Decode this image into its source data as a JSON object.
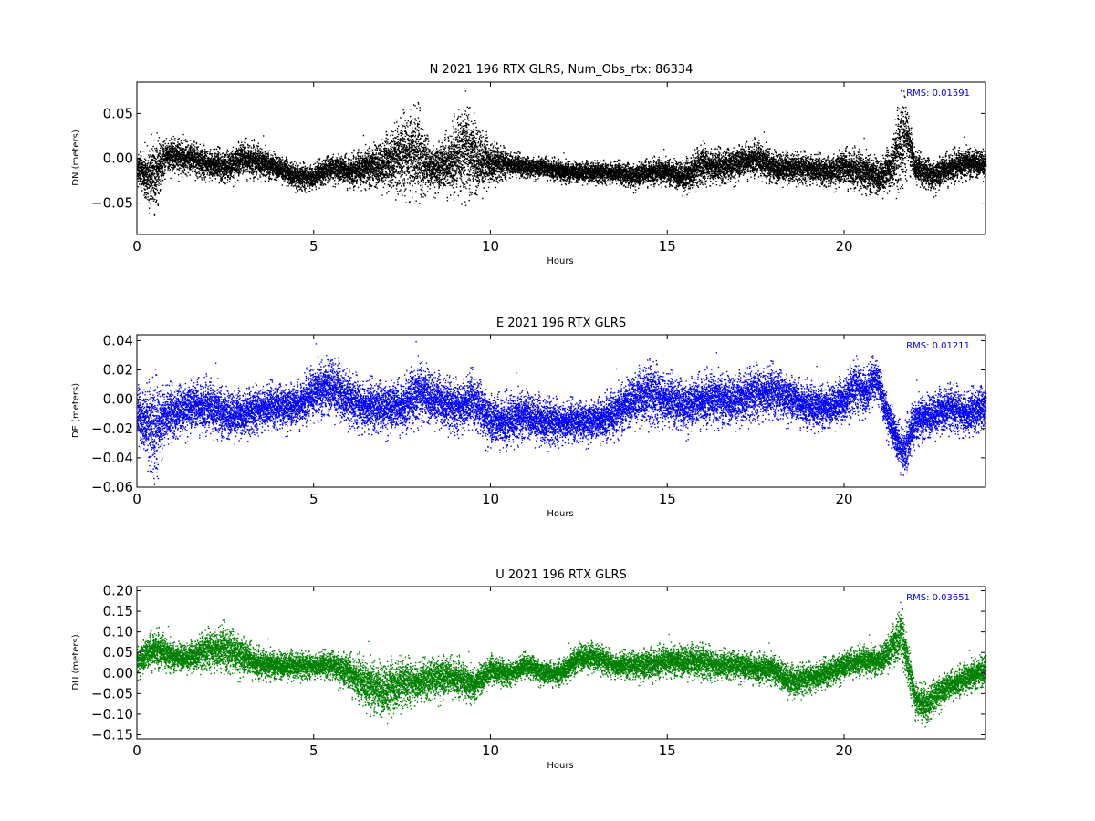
{
  "chart_data": [
    {
      "type": "scatter",
      "title": "N 2021 196 RTX  GLRS, Num_Obs_rtx: 86334",
      "xlabel": "Hours",
      "ylabel": "DN (meters)",
      "xlim": [
        0,
        24
      ],
      "ylim": [
        -0.085,
        0.085
      ],
      "xticks": [
        0,
        5,
        10,
        15,
        20
      ],
      "yticks": [
        -0.05,
        0.0,
        0.05
      ],
      "ytick_labels": [
        "−0.05",
        "0.00",
        "0.05"
      ],
      "grid": false,
      "color": "#000000",
      "annotation": "RMS:  0.01591",
      "annotation_color": "#0000ff",
      "series": [
        {
          "x": [
            0,
            0.25,
            0.5,
            0.75,
            1,
            1.5,
            2,
            2.5,
            3,
            3.5,
            4,
            4.5,
            5,
            5.5,
            6,
            6.5,
            7,
            7.5,
            7.8,
            8,
            8.3,
            8.6,
            9,
            9.3,
            9.6,
            10,
            10.5,
            11,
            11.5,
            12,
            12.5,
            13,
            13.5,
            14,
            14.5,
            15,
            15.5,
            16,
            16.5,
            17,
            17.5,
            18,
            18.5,
            19,
            19.5,
            20,
            20.5,
            21,
            21.3,
            21.6,
            21.8,
            22,
            22.5,
            23,
            23.5,
            24
          ],
          "y": [
            -0.01,
            -0.02,
            -0.02,
            0.0,
            0.005,
            0.0,
            -0.005,
            -0.01,
            0.0,
            -0.005,
            -0.01,
            -0.02,
            -0.02,
            -0.01,
            -0.015,
            -0.01,
            -0.005,
            0.005,
            0.01,
            0.0,
            -0.01,
            -0.01,
            0.0,
            0.01,
            0.0,
            -0.005,
            -0.005,
            -0.01,
            -0.01,
            -0.015,
            -0.015,
            -0.015,
            -0.015,
            -0.02,
            -0.015,
            -0.015,
            -0.02,
            -0.005,
            -0.01,
            -0.005,
            0.0,
            -0.01,
            -0.01,
            -0.01,
            -0.015,
            -0.01,
            -0.015,
            -0.02,
            -0.01,
            0.02,
            0.025,
            -0.01,
            -0.02,
            -0.01,
            -0.005,
            -0.005
          ],
          "spread": [
            0.015,
            0.02,
            0.035,
            0.018,
            0.015,
            0.015,
            0.015,
            0.015,
            0.018,
            0.015,
            0.012,
            0.012,
            0.012,
            0.013,
            0.015,
            0.018,
            0.025,
            0.035,
            0.045,
            0.04,
            0.02,
            0.025,
            0.035,
            0.045,
            0.035,
            0.02,
            0.012,
            0.01,
            0.01,
            0.01,
            0.01,
            0.01,
            0.01,
            0.012,
            0.012,
            0.012,
            0.016,
            0.018,
            0.016,
            0.016,
            0.016,
            0.016,
            0.014,
            0.014,
            0.014,
            0.018,
            0.018,
            0.018,
            0.02,
            0.045,
            0.03,
            0.015,
            0.015,
            0.015,
            0.014,
            0.014
          ]
        }
      ]
    },
    {
      "type": "scatter",
      "title": "E 2021 196 RTX  GLRS",
      "xlabel": "Hours",
      "ylabel": "DE (meters)",
      "xlim": [
        0,
        24
      ],
      "ylim": [
        -0.06,
        0.044
      ],
      "xticks": [
        0,
        5,
        10,
        15,
        20
      ],
      "yticks": [
        -0.06,
        -0.04,
        -0.02,
        0.0,
        0.02,
        0.04
      ],
      "ytick_labels": [
        "−0.06",
        "−0.04",
        "−0.02",
        "0.00",
        "0.02",
        "0.04"
      ],
      "grid": false,
      "color": "#0000ff",
      "annotation": "RMS:  0.01211",
      "annotation_color": "#0000ff",
      "series": [
        {
          "x": [
            0,
            0.25,
            0.5,
            0.75,
            1,
            1.5,
            2,
            2.5,
            3,
            3.5,
            4,
            4.5,
            5,
            5.5,
            6,
            6.5,
            7,
            7.5,
            8,
            8.5,
            9,
            9.5,
            10,
            10.5,
            11,
            11.5,
            12,
            12.5,
            13,
            13.5,
            14,
            14.5,
            15,
            15.5,
            16,
            16.5,
            17,
            17.5,
            18,
            18.5,
            19,
            19.5,
            20,
            20.3,
            20.6,
            20.9,
            21.2,
            21.5,
            21.7,
            22,
            22.5,
            23,
            23.5,
            24
          ],
          "y": [
            -0.01,
            -0.015,
            -0.02,
            -0.01,
            -0.01,
            -0.005,
            -0.005,
            -0.01,
            -0.01,
            -0.005,
            -0.005,
            -0.005,
            0.005,
            0.01,
            0.0,
            -0.005,
            -0.005,
            -0.005,
            0.005,
            0.0,
            -0.005,
            0.0,
            -0.015,
            -0.015,
            -0.01,
            -0.015,
            -0.015,
            -0.015,
            -0.015,
            -0.01,
            0.0,
            0.005,
            0.0,
            -0.005,
            0.0,
            0.0,
            0.0,
            0.005,
            0.005,
            0.0,
            -0.005,
            -0.005,
            0.0,
            0.01,
            0.005,
            0.015,
            -0.01,
            -0.03,
            -0.035,
            -0.015,
            -0.01,
            -0.005,
            -0.01,
            -0.005
          ],
          "spread": [
            0.015,
            0.02,
            0.03,
            0.018,
            0.015,
            0.015,
            0.015,
            0.015,
            0.013,
            0.013,
            0.013,
            0.013,
            0.015,
            0.018,
            0.015,
            0.015,
            0.015,
            0.015,
            0.018,
            0.015,
            0.015,
            0.016,
            0.015,
            0.015,
            0.014,
            0.014,
            0.012,
            0.012,
            0.012,
            0.014,
            0.015,
            0.018,
            0.015,
            0.015,
            0.015,
            0.015,
            0.015,
            0.015,
            0.015,
            0.013,
            0.013,
            0.013,
            0.013,
            0.015,
            0.015,
            0.012,
            0.012,
            0.013,
            0.015,
            0.013,
            0.013,
            0.013,
            0.013,
            0.013
          ]
        }
      ]
    },
    {
      "type": "scatter",
      "title": "U 2021 196 RTX  GLRS",
      "xlabel": "Hours",
      "ylabel": "DU (meters)",
      "xlim": [
        0,
        24
      ],
      "ylim": [
        -0.16,
        0.21
      ],
      "xticks": [
        0,
        5,
        10,
        15,
        20
      ],
      "yticks": [
        -0.15,
        -0.1,
        -0.05,
        0.0,
        0.05,
        0.1,
        0.15,
        0.2
      ],
      "ytick_labels": [
        "−0.15",
        "−0.10",
        "−0.05",
        "0.00",
        "0.05",
        "0.10",
        "0.15",
        "0.20"
      ],
      "grid": false,
      "color": "#008000",
      "annotation": "RMS:  0.03651",
      "annotation_color": "#0000ff",
      "series": [
        {
          "x": [
            0,
            0.5,
            1,
            1.5,
            2,
            2.5,
            3,
            3.5,
            4,
            4.5,
            5,
            5.5,
            6,
            6.5,
            7,
            7.5,
            8,
            8.5,
            9,
            9.5,
            10,
            10.5,
            11,
            11.5,
            12,
            12.5,
            13,
            13.5,
            14,
            14.5,
            15,
            15.5,
            16,
            16.5,
            17,
            17.5,
            18,
            18.5,
            19,
            19.5,
            20,
            20.5,
            21,
            21.3,
            21.6,
            21.8,
            22,
            22.3,
            22.6,
            23,
            23.5,
            24
          ],
          "y": [
            0.03,
            0.06,
            0.04,
            0.04,
            0.06,
            0.06,
            0.04,
            0.02,
            0.02,
            0.02,
            0.02,
            0.02,
            0.0,
            -0.03,
            -0.04,
            -0.02,
            -0.02,
            -0.01,
            -0.01,
            -0.03,
            0.01,
            0.0,
            0.02,
            0.0,
            0.0,
            0.04,
            0.04,
            0.02,
            0.02,
            0.02,
            0.03,
            0.03,
            0.03,
            0.02,
            0.02,
            0.01,
            0.01,
            -0.02,
            -0.01,
            0.0,
            0.02,
            0.03,
            0.03,
            0.06,
            0.1,
            0.02,
            -0.06,
            -0.08,
            -0.05,
            -0.03,
            -0.01,
            0.01
          ],
          "spread": [
            0.03,
            0.04,
            0.03,
            0.03,
            0.04,
            0.05,
            0.04,
            0.03,
            0.03,
            0.03,
            0.025,
            0.03,
            0.04,
            0.05,
            0.06,
            0.05,
            0.04,
            0.045,
            0.04,
            0.035,
            0.03,
            0.025,
            0.025,
            0.025,
            0.025,
            0.03,
            0.03,
            0.025,
            0.03,
            0.035,
            0.03,
            0.035,
            0.035,
            0.03,
            0.03,
            0.03,
            0.03,
            0.035,
            0.03,
            0.03,
            0.03,
            0.03,
            0.03,
            0.04,
            0.06,
            0.04,
            0.04,
            0.04,
            0.035,
            0.03,
            0.03,
            0.035
          ]
        }
      ]
    }
  ]
}
